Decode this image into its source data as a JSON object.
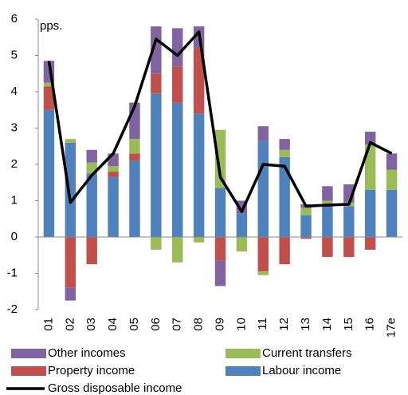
{
  "chart_data": {
    "type": "bar",
    "stacked": true,
    "y_label": "pps.",
    "categories": [
      "01",
      "02",
      "03",
      "04",
      "05",
      "06",
      "07",
      "08",
      "09",
      "10",
      "11",
      "12",
      "13",
      "14",
      "15",
      "16",
      "17e"
    ],
    "series": [
      {
        "name": "Labour income",
        "color": "#4f81bd",
        "values": [
          3.5,
          2.6,
          1.75,
          1.65,
          2.1,
          3.95,
          3.7,
          3.4,
          1.35,
          0.65,
          2.65,
          2.2,
          0.6,
          0.85,
          0.85,
          1.3,
          1.3
        ]
      },
      {
        "name": "Property income",
        "color": "#c0504d",
        "values": [
          0.65,
          -1.4,
          -0.75,
          0.15,
          0.2,
          0.55,
          1.0,
          1.8,
          -0.65,
          0,
          -0.95,
          -0.75,
          -0.05,
          -0.55,
          -0.55,
          -0.35,
          0
        ]
      },
      {
        "name": "Current transfers",
        "color": "#9bbb59",
        "values": [
          0.1,
          0.1,
          0.3,
          0.15,
          0.4,
          -0.35,
          -0.7,
          -0.15,
          1.6,
          -0.4,
          -0.1,
          0.2,
          0.2,
          0.15,
          0.1,
          1.25,
          0.55
        ]
      },
      {
        "name": "Other incomes",
        "color": "#8064a2",
        "values": [
          0.6,
          -0.35,
          0.35,
          0.35,
          1.0,
          1.3,
          1.05,
          0.6,
          -0.7,
          0.35,
          0.4,
          0.3,
          0.1,
          0.4,
          0.5,
          0.35,
          0.45
        ]
      }
    ],
    "line": {
      "name": "Gross disposable income",
      "color": "#000000",
      "values": [
        4.85,
        0.95,
        1.7,
        2.3,
        3.6,
        5.45,
        5.0,
        5.65,
        1.65,
        0.7,
        2.0,
        1.95,
        0.85,
        0.88,
        0.9,
        2.6,
        2.3
      ]
    },
    "ylim": [
      -2,
      6
    ],
    "yticks": [
      -2,
      -1,
      0,
      1,
      2,
      3,
      4,
      5,
      6
    ],
    "grid": false
  }
}
